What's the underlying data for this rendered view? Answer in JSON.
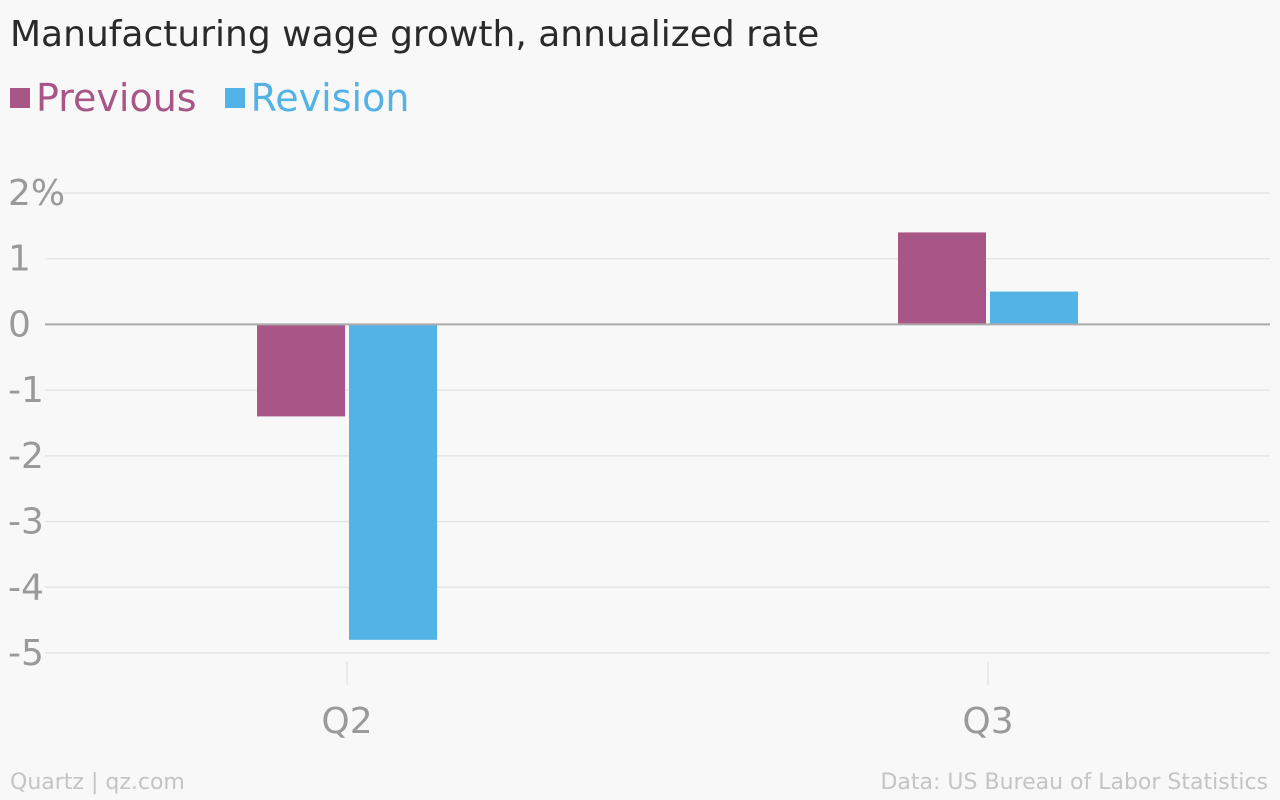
{
  "chart_data": {
    "type": "bar",
    "title": "Manufacturing wage growth, annualized rate",
    "categories": [
      "Q2",
      "Q3"
    ],
    "series": [
      {
        "name": "Previous",
        "values": [
          -1.4,
          1.4
        ],
        "color": "#a85686"
      },
      {
        "name": "Revision",
        "values": [
          -4.8,
          0.5
        ],
        "color": "#53b3e6"
      }
    ],
    "y_ticks": [
      {
        "value": 2,
        "label": "2%"
      },
      {
        "value": 1,
        "label": "1"
      },
      {
        "value": 0,
        "label": "0"
      },
      {
        "value": -1,
        "label": "-1"
      },
      {
        "value": -2,
        "label": "-2"
      },
      {
        "value": -3,
        "label": "-3"
      },
      {
        "value": -4,
        "label": "-4"
      },
      {
        "value": -5,
        "label": "-5"
      }
    ],
    "ylim": [
      -5,
      2
    ],
    "xlabel": "",
    "ylabel": "",
    "grid": true,
    "legend_position": "top-left"
  },
  "footer": {
    "source_left": "Quartz | qz.com",
    "source_right": "Data: US Bureau of Labor Statistics"
  },
  "colors": {
    "gridline": "#e6e6e6",
    "zero_line": "#aaaaaa",
    "tick_text": "#9a9a9a"
  }
}
